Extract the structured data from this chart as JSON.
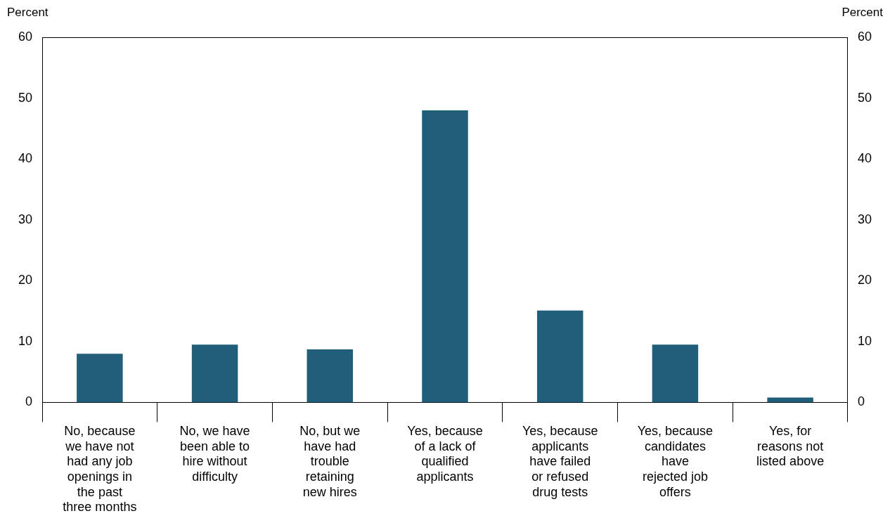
{
  "chart_data": {
    "type": "bar",
    "categories": [
      "No, because we have not had any job openings in the past three months",
      "No, we have been able to hire without difficulty",
      "No, but we have had trouble retaining new hires",
      "Yes, because of a lack of qualified applicants",
      "Yes, because applicants have failed or refused drug tests",
      "Yes, because candidates have rejected job offers",
      "Yes, for reasons not listed above"
    ],
    "values": [
      8.0,
      9.5,
      8.7,
      48.0,
      15.1,
      9.5,
      0.8
    ],
    "color": "#215e79",
    "ylabel": "Percent",
    "y2label": "Percent",
    "ylim": [
      0,
      60
    ],
    "yticks": [
      0,
      10,
      20,
      30,
      40,
      50,
      60
    ],
    "y2lim": [
      0,
      60
    ],
    "y2ticks": [
      0,
      10,
      20,
      30,
      40,
      50,
      60
    ],
    "grid": false,
    "legend": false
  }
}
